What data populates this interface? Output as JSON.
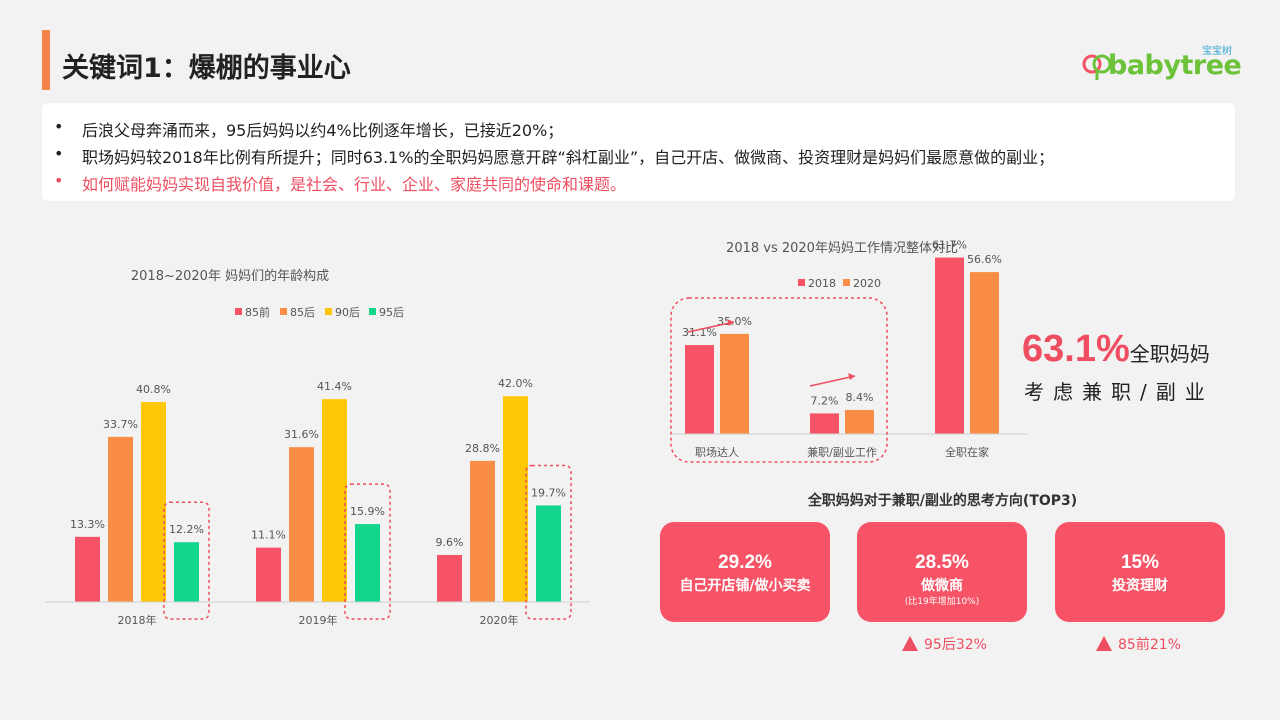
{
  "header": {
    "title": "关键词1：爆棚的事业心",
    "logo_text": "babytree",
    "logo_cn": "宝宝树"
  },
  "summary": {
    "bullet": "•",
    "lines": [
      "后浪父母奔涌而来，95后妈妈以约4%比例逐年增长，已接近20%；",
      "职场妈妈较2018年比例有所提升；同时63.1%的全职妈妈愿意开辟“斜杠副业”，自己开店、做微商、投资理财是妈妈们最愿意做的副业；",
      "如何赋能妈妈实现自我价值，是社会、行业、企业、家庭共同的使命和课题。"
    ]
  },
  "colors": {
    "accent": "#f5834a",
    "red": "#f65466",
    "orange": "#f98d45",
    "yellow": "#fec705",
    "green": "#12d68b",
    "highlight": "#ee4e60"
  },
  "chart_data": [
    {
      "type": "bar",
      "title": "2018~2020年   妈妈们的年龄构成",
      "categories": [
        "2018年",
        "2019年",
        "2020年"
      ],
      "series": [
        {
          "name": "85前",
          "values": [
            13.3,
            11.1,
            9.6
          ]
        },
        {
          "name": "85后",
          "values": [
            33.7,
            31.6,
            28.8
          ]
        },
        {
          "name": "90后",
          "values": [
            40.8,
            41.4,
            42.0
          ]
        },
        {
          "name": "95后",
          "values": [
            12.2,
            15.9,
            19.7
          ]
        }
      ],
      "value_labels": [
        [
          "13.3%",
          "33.7%",
          "40.8%",
          "12.2%"
        ],
        [
          "11.1%",
          "31.6%",
          "41.4%",
          "15.9%"
        ],
        [
          "9.6%",
          "28.8%",
          "42.0%",
          "19.7%"
        ]
      ],
      "unit": "%",
      "legend_position": "top-center",
      "grid": false
    },
    {
      "type": "bar",
      "title": "2018 vs 2020年妈妈工作情况整体对比",
      "categories": [
        "职场达人",
        "兼职/副业工作",
        "全职在家"
      ],
      "series": [
        {
          "name": "2018",
          "values": [
            31.1,
            7.2,
            61.7
          ]
        },
        {
          "name": "2020",
          "values": [
            35.0,
            8.4,
            56.6
          ]
        }
      ],
      "value_labels": [
        [
          "31.1%",
          "35.0%"
        ],
        [
          "7.2%",
          "8.4%"
        ],
        [
          "61.7%",
          "56.6%"
        ]
      ],
      "unit": "%",
      "legend_position": "top-right",
      "grid": false
    }
  ],
  "highlight_stat": {
    "value": "63.1%",
    "unit_text": "全职妈妈",
    "subtext": "考虑兼职/副业"
  },
  "top3": {
    "title": "全职妈妈对于兼职/副业的思考方向(TOP3)",
    "items": [
      {
        "pct": "29.2%",
        "label": "自己开店铺/做小买卖",
        "note": ""
      },
      {
        "pct": "28.5%",
        "label": "做微商",
        "note": "(比19年增加10%)"
      },
      {
        "pct": "15%",
        "label": "投资理财",
        "note": ""
      }
    ],
    "notes": [
      "95后32%",
      "85前21%"
    ]
  }
}
